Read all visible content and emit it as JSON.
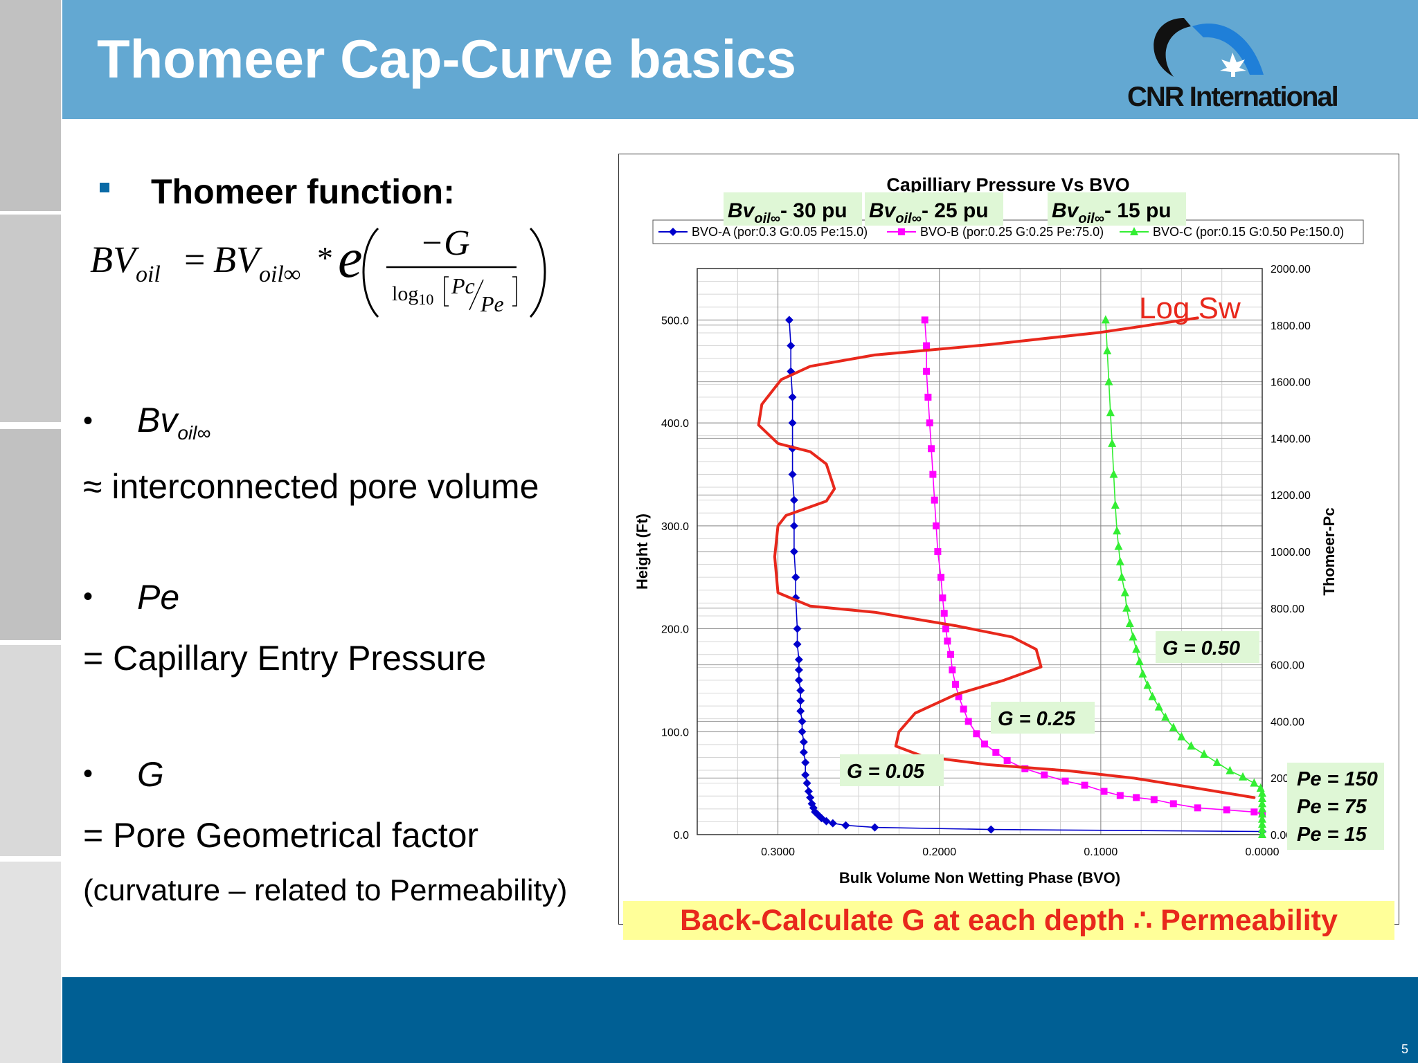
{
  "slide": {
    "title": "Thomeer Cap-Curve basics",
    "logo_text": "CNR International",
    "page_number": "5",
    "heading": "Thomeer function:",
    "formula": {
      "lhs": "BV",
      "lhs_sub": "oil",
      "rhs": "BV",
      "rhs_sub": "oil∞",
      "op": "*",
      "base": "e",
      "num": "−G",
      "log": "log",
      "log_sub": "10",
      "frac_top": "Pc",
      "frac_bot": "Pe"
    },
    "terms": [
      {
        "symbol": "Bv",
        "sub": "oil∞",
        "desc": "≈ interconnected pore volume"
      },
      {
        "symbol": "Pe",
        "sub": "",
        "desc": "= Capillary Entry Pressure"
      },
      {
        "symbol": "G",
        "sub": "",
        "desc": "= Pore Geometrical factor"
      }
    ],
    "note": "(curvature – related to Permeability)",
    "bullet_dot": "•",
    "banner": "Back-Calculate G at each depth ∴ Permeability",
    "colors": {
      "header": "#63a8d2",
      "footer": "#005f94",
      "banner_bg": "#ffff99",
      "banner_text": "#e8281c"
    }
  },
  "chart_data": {
    "type": "scatter",
    "title": "Capilliary Pressure Vs BVO",
    "xlabel": "Bulk Volume Non Wetting Phase (BVO)",
    "ylabel": "Height (Ft)",
    "y2label": "Thomeer-Pc",
    "x_reversed": true,
    "xlim": [
      0.35,
      0.0
    ],
    "ylim": [
      0,
      550
    ],
    "y2lim": [
      0,
      2000
    ],
    "xticks": [
      "0.3000",
      "0.2000",
      "0.1000",
      "0.0000"
    ],
    "yticks": [
      "0.0",
      "100.0",
      "200.0",
      "300.0",
      "400.0",
      "500.0"
    ],
    "y2ticks": [
      "0.00",
      "200.00",
      "400.00",
      "600.00",
      "800.00",
      "1000.00",
      "1200.00",
      "1400.00",
      "1600.00",
      "1800.00",
      "2000.00"
    ],
    "grid": true,
    "legend_position": "top",
    "series": [
      {
        "name": "BVO-A (por:0.3 G:0.05 Pe:15.0)",
        "color": "#0000cc",
        "marker": "diamond",
        "points": [
          [
            0.0,
            3
          ],
          [
            0.168,
            5
          ],
          [
            0.24,
            7
          ],
          [
            0.258,
            9
          ],
          [
            0.266,
            11
          ],
          [
            0.27,
            13
          ],
          [
            0.273,
            16
          ],
          [
            0.275,
            19
          ],
          [
            0.277,
            22
          ],
          [
            0.278,
            26
          ],
          [
            0.279,
            30
          ],
          [
            0.28,
            36
          ],
          [
            0.281,
            42
          ],
          [
            0.282,
            50
          ],
          [
            0.283,
            58
          ],
          [
            0.283,
            70
          ],
          [
            0.284,
            80
          ],
          [
            0.284,
            90
          ],
          [
            0.285,
            100
          ],
          [
            0.285,
            110
          ],
          [
            0.286,
            120
          ],
          [
            0.286,
            130
          ],
          [
            0.286,
            140
          ],
          [
            0.287,
            150
          ],
          [
            0.287,
            160
          ],
          [
            0.287,
            170
          ],
          [
            0.288,
            185
          ],
          [
            0.288,
            200
          ],
          [
            0.289,
            230
          ],
          [
            0.289,
            250
          ],
          [
            0.29,
            275
          ],
          [
            0.29,
            300
          ],
          [
            0.29,
            325
          ],
          [
            0.291,
            350
          ],
          [
            0.291,
            375
          ],
          [
            0.291,
            400
          ],
          [
            0.291,
            425
          ],
          [
            0.292,
            450
          ],
          [
            0.292,
            475
          ],
          [
            0.293,
            500
          ]
        ]
      },
      {
        "name": "BVO-B (por:0.25 G:0.25 Pe:75.0)",
        "color": "#ff00ff",
        "marker": "square",
        "points": [
          [
            0.0,
            20
          ],
          [
            0.005,
            22
          ],
          [
            0.022,
            24
          ],
          [
            0.04,
            26
          ],
          [
            0.055,
            30
          ],
          [
            0.067,
            34
          ],
          [
            0.078,
            36
          ],
          [
            0.088,
            38
          ],
          [
            0.098,
            42
          ],
          [
            0.11,
            48
          ],
          [
            0.122,
            52
          ],
          [
            0.135,
            58
          ],
          [
            0.147,
            64
          ],
          [
            0.158,
            72
          ],
          [
            0.165,
            80
          ],
          [
            0.172,
            88
          ],
          [
            0.177,
            98
          ],
          [
            0.182,
            110
          ],
          [
            0.185,
            122
          ],
          [
            0.188,
            134
          ],
          [
            0.19,
            146
          ],
          [
            0.192,
            160
          ],
          [
            0.193,
            175
          ],
          [
            0.195,
            188
          ],
          [
            0.196,
            200
          ],
          [
            0.197,
            215
          ],
          [
            0.198,
            230
          ],
          [
            0.199,
            250
          ],
          [
            0.201,
            275
          ],
          [
            0.202,
            300
          ],
          [
            0.203,
            325
          ],
          [
            0.204,
            350
          ],
          [
            0.205,
            375
          ],
          [
            0.206,
            400
          ],
          [
            0.207,
            425
          ],
          [
            0.208,
            450
          ],
          [
            0.208,
            475
          ],
          [
            0.209,
            500
          ]
        ]
      },
      {
        "name": "BVO-C (por:0.15 G:0.50 Pe:150.0)",
        "color": "#33ee33",
        "marker": "triangle",
        "points": [
          [
            0.0,
            0
          ],
          [
            0.0,
            5
          ],
          [
            0.0,
            10
          ],
          [
            0.0,
            15
          ],
          [
            0.0,
            20
          ],
          [
            0.0,
            25
          ],
          [
            0.0,
            30
          ],
          [
            0.0,
            35
          ],
          [
            0.0,
            40
          ],
          [
            0.001,
            45
          ],
          [
            0.005,
            50
          ],
          [
            0.012,
            56
          ],
          [
            0.02,
            62
          ],
          [
            0.028,
            70
          ],
          [
            0.036,
            78
          ],
          [
            0.044,
            86
          ],
          [
            0.05,
            95
          ],
          [
            0.055,
            104
          ],
          [
            0.06,
            114
          ],
          [
            0.064,
            124
          ],
          [
            0.068,
            134
          ],
          [
            0.071,
            145
          ],
          [
            0.074,
            156
          ],
          [
            0.076,
            168
          ],
          [
            0.078,
            180
          ],
          [
            0.08,
            192
          ],
          [
            0.082,
            205
          ],
          [
            0.084,
            220
          ],
          [
            0.085,
            235
          ],
          [
            0.087,
            250
          ],
          [
            0.088,
            265
          ],
          [
            0.089,
            280
          ],
          [
            0.09,
            295
          ],
          [
            0.091,
            320
          ],
          [
            0.092,
            350
          ],
          [
            0.093,
            380
          ],
          [
            0.094,
            410
          ],
          [
            0.095,
            440
          ],
          [
            0.096,
            470
          ],
          [
            0.097,
            500
          ]
        ]
      },
      {
        "name": "Log Sw",
        "color": "#e8281c",
        "marker": "none",
        "points": [
          [
            0.005,
            36
          ],
          [
            0.04,
            45
          ],
          [
            0.08,
            55
          ],
          [
            0.12,
            62
          ],
          [
            0.17,
            68
          ],
          [
            0.21,
            76
          ],
          [
            0.227,
            86
          ],
          [
            0.225,
            100
          ],
          [
            0.215,
            118
          ],
          [
            0.19,
            136
          ],
          [
            0.16,
            150
          ],
          [
            0.137,
            163
          ],
          [
            0.14,
            180
          ],
          [
            0.155,
            192
          ],
          [
            0.19,
            203
          ],
          [
            0.24,
            216
          ],
          [
            0.28,
            222
          ],
          [
            0.3,
            235
          ],
          [
            0.302,
            270
          ],
          [
            0.3,
            300
          ],
          [
            0.295,
            310
          ],
          [
            0.27,
            324
          ],
          [
            0.265,
            336
          ],
          [
            0.27,
            360
          ],
          [
            0.28,
            372
          ],
          [
            0.3,
            380
          ],
          [
            0.312,
            398
          ],
          [
            0.31,
            418
          ],
          [
            0.298,
            442
          ],
          [
            0.28,
            455
          ],
          [
            0.24,
            466
          ],
          [
            0.17,
            476
          ],
          [
            0.1,
            488
          ],
          [
            0.04,
            502
          ]
        ]
      }
    ],
    "annotations": [
      {
        "text": "Log Sw",
        "color": "#e8281c"
      },
      {
        "text": "Bv",
        "sub": "oil∞",
        "suffix": "- 30 pu"
      },
      {
        "text": "Bv",
        "sub": "oil∞",
        "suffix": "- 25 pu"
      },
      {
        "text": "Bv",
        "sub": "oil∞",
        "suffix": "- 15 pu"
      },
      {
        "text": "G = 0.50"
      },
      {
        "text": "G = 0.25"
      },
      {
        "text": "G = 0.05"
      },
      {
        "text": "Pe = 150"
      },
      {
        "text": "Pe = 75"
      },
      {
        "text": "Pe = 15"
      }
    ]
  }
}
